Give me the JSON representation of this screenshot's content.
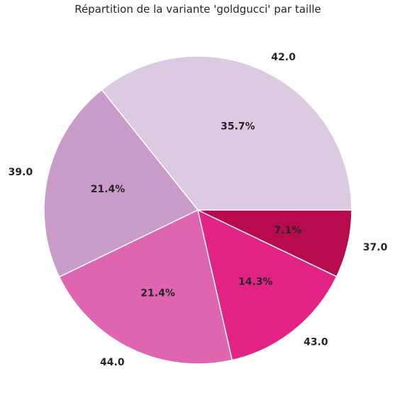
{
  "chart_data": {
    "type": "pie",
    "title": "Répartition de la variante 'goldgucci' par taille",
    "start_angle_deg": 0,
    "direction": "counterclockwise",
    "slices": [
      {
        "label": "42.0",
        "value": 35.7,
        "pct_label": "35.7%",
        "color": "#dcc9e2"
      },
      {
        "label": "39.0",
        "value": 21.4,
        "pct_label": "21.4%",
        "color": "#c99bc9"
      },
      {
        "label": "44.0",
        "value": 21.4,
        "pct_label": "21.4%",
        "color": "#df65b0"
      },
      {
        "label": "43.0",
        "value": 14.3,
        "pct_label": "14.3%",
        "color": "#e22383"
      },
      {
        "label": "37.0",
        "value": 7.1,
        "pct_label": "7.1%",
        "color": "#b80b4e"
      }
    ]
  }
}
